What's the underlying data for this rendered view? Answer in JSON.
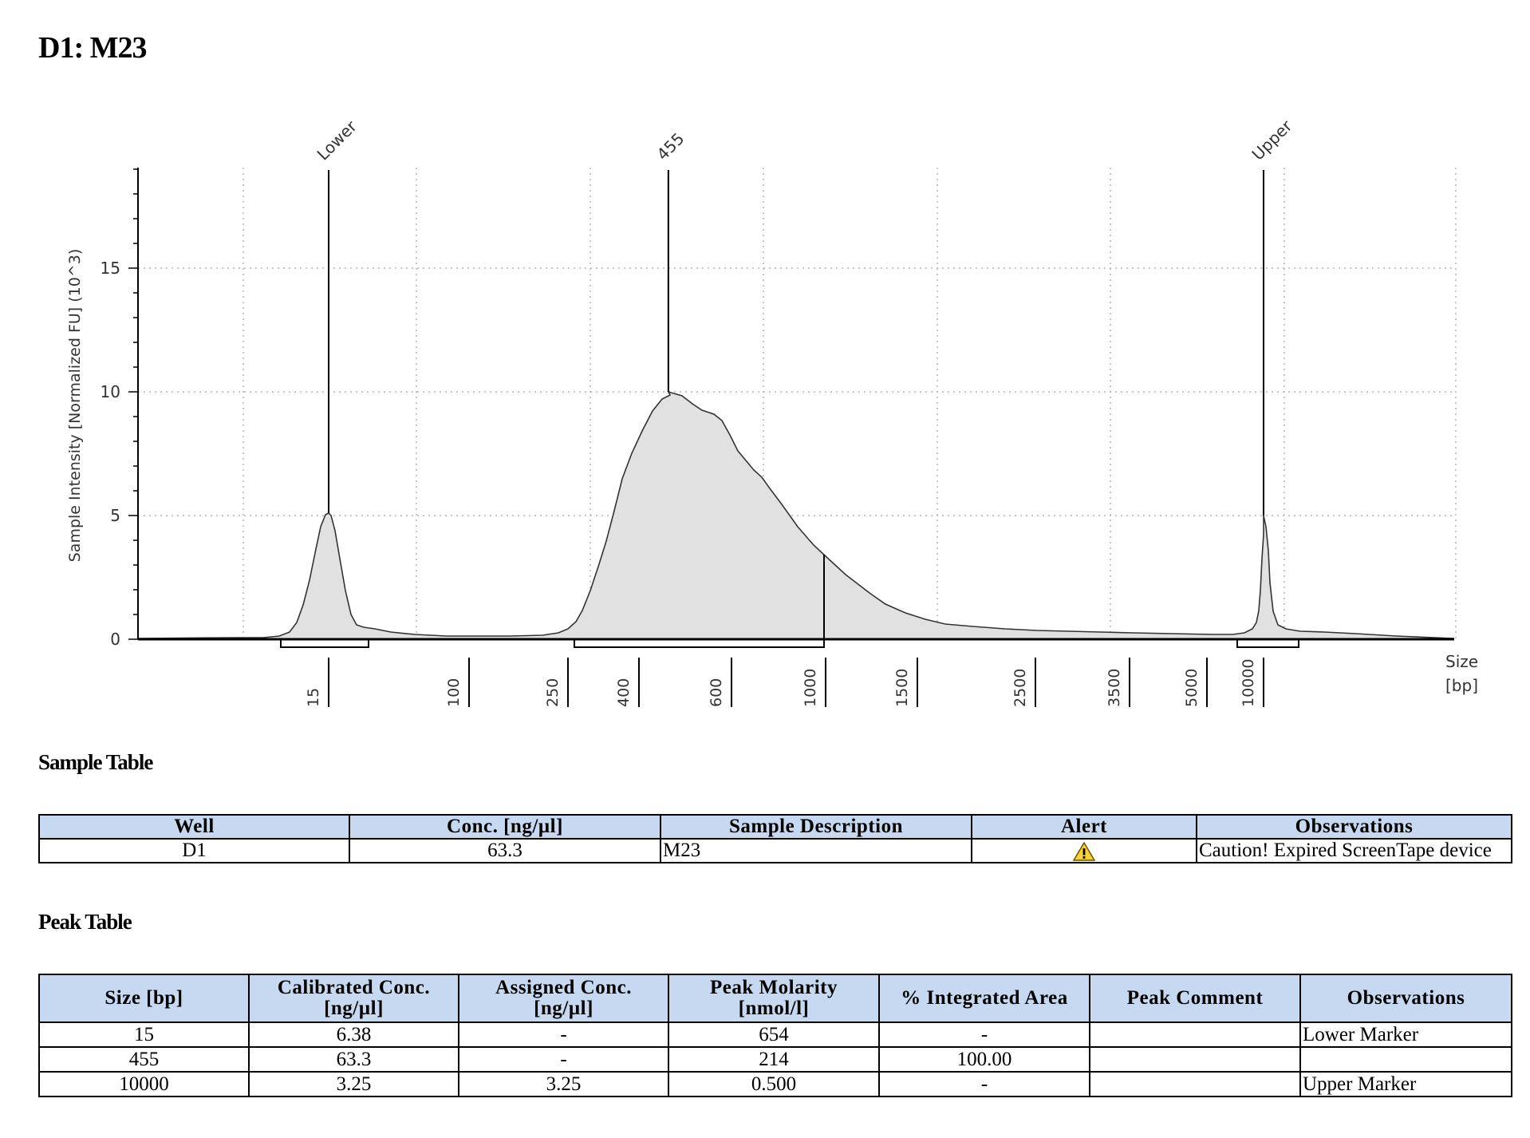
{
  "page": {
    "title": "D1: M23"
  },
  "chart_data": {
    "type": "line",
    "ylabel": "Sample Intensity [Normalized FU] (10^3)",
    "xlabel": "Size [bp]",
    "xlabel_lines": [
      "Size",
      "[bp]"
    ],
    "yticks": [
      0,
      5,
      10,
      15
    ],
    "ylim": [
      0,
      19
    ],
    "x_ticks": [
      "15",
      "100",
      "250",
      "400",
      "600",
      "1000",
      "1500",
      "2500",
      "3500",
      "5000",
      "10000"
    ],
    "grid": true,
    "fill_color": "#e1e1e1",
    "peak_labels": [
      "Lower",
      "455",
      "Upper"
    ],
    "series": [
      {
        "x": [
          15,
          455,
          10000
        ],
        "y": [
          5.1,
          10.0,
          5.0
        ]
      }
    ]
  },
  "sample_table": {
    "title": "Sample Table",
    "headers": [
      "Well",
      "Conc. [ng/µl]",
      "Sample Description",
      "Alert",
      "Observations"
    ],
    "rows": [
      {
        "well": "D1",
        "conc": "63.3",
        "description": "M23",
        "alert_icon": "warning-triangle-icon",
        "observations": "Caution! Expired ScreenTape device"
      }
    ]
  },
  "peak_table": {
    "title": "Peak Table",
    "headers": [
      [
        "Size [bp]"
      ],
      [
        "Calibrated Conc.",
        "[ng/µl]"
      ],
      [
        "Assigned Conc.",
        "[ng/µl]"
      ],
      [
        "Peak Molarity",
        "[nmol/l]"
      ],
      [
        "% Integrated Area"
      ],
      [
        "Peak Comment"
      ],
      [
        "Observations"
      ]
    ],
    "rows": [
      [
        "15",
        "6.38",
        "-",
        "654",
        "-",
        "",
        "Lower Marker"
      ],
      [
        "455",
        "63.3",
        "-",
        "214",
        "100.00",
        "",
        ""
      ],
      [
        "10000",
        "3.25",
        "3.25",
        "0.500",
        "-",
        "",
        "Upper Marker"
      ]
    ]
  },
  "colors": {
    "header_bg": "#c6d9f1",
    "alert_yellow": "#f7d13a"
  }
}
